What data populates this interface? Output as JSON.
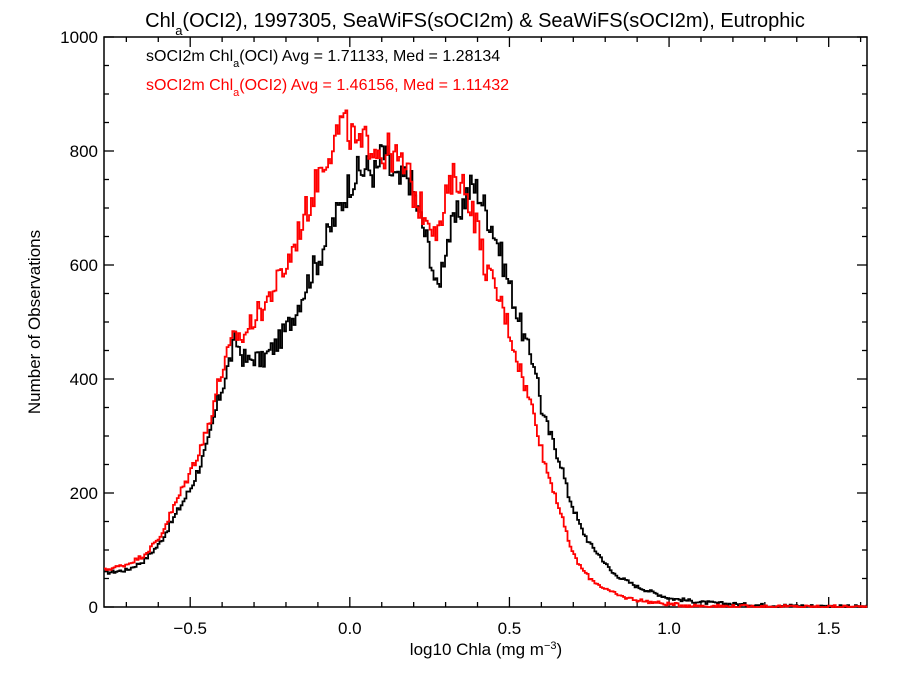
{
  "chart_data": {
    "type": "line",
    "title_parts": [
      "Chl",
      "a",
      "(OCI2), 1997305, SeaWiFS(sOCI2m) & SeaWiFS(sOCI2m), Eutrophic"
    ],
    "xlabel_parts": [
      "log10 Chla (mg m",
      "−3",
      ")"
    ],
    "ylabel": "Number of Observations",
    "xlim": [
      -0.77,
      1.62
    ],
    "ylim": [
      0,
      1000
    ],
    "x_ticks": [
      -0.5,
      0.0,
      0.5,
      1.0,
      1.5
    ],
    "x_tick_labels": [
      "−0.5",
      "0.0",
      "0.5",
      "1.0",
      "1.5"
    ],
    "y_ticks": [
      0,
      200,
      400,
      600,
      800,
      1000
    ],
    "y_tick_labels": [
      "0",
      "200",
      "400",
      "600",
      "800",
      "1000"
    ],
    "grid": false,
    "legend_position": "top-left",
    "series": [
      {
        "name_parts": [
          "sOCI2m Chl",
          "a",
          "(OCI) Avg = 1.71133, Med = 1.28134"
        ],
        "color": "#000000",
        "points": [
          [
            -0.77,
            60
          ],
          [
            -0.7,
            65
          ],
          [
            -0.65,
            80
          ],
          [
            -0.6,
            110
          ],
          [
            -0.55,
            160
          ],
          [
            -0.5,
            210
          ],
          [
            -0.45,
            280
          ],
          [
            -0.42,
            350
          ],
          [
            -0.4,
            390
          ],
          [
            -0.38,
            430
          ],
          [
            -0.36,
            470
          ],
          [
            -0.34,
            440
          ],
          [
            -0.32,
            430
          ],
          [
            -0.3,
            440
          ],
          [
            -0.28,
            430
          ],
          [
            -0.25,
            450
          ],
          [
            -0.22,
            470
          ],
          [
            -0.2,
            490
          ],
          [
            -0.18,
            510
          ],
          [
            -0.15,
            550
          ],
          [
            -0.12,
            590
          ],
          [
            -0.1,
            610
          ],
          [
            -0.08,
            640
          ],
          [
            -0.05,
            680
          ],
          [
            -0.02,
            720
          ],
          [
            0.0,
            750
          ],
          [
            0.02,
            760
          ],
          [
            0.05,
            770
          ],
          [
            0.08,
            760
          ],
          [
            0.1,
            800
          ],
          [
            0.12,
            770
          ],
          [
            0.15,
            740
          ],
          [
            0.18,
            760
          ],
          [
            0.2,
            720
          ],
          [
            0.22,
            680
          ],
          [
            0.25,
            620
          ],
          [
            0.27,
            550
          ],
          [
            0.3,
            640
          ],
          [
            0.33,
            680
          ],
          [
            0.36,
            720
          ],
          [
            0.38,
            740
          ],
          [
            0.4,
            730
          ],
          [
            0.42,
            700
          ],
          [
            0.45,
            660
          ],
          [
            0.48,
            600
          ],
          [
            0.5,
            560
          ],
          [
            0.52,
            520
          ],
          [
            0.55,
            460
          ],
          [
            0.58,
            420
          ],
          [
            0.6,
            340
          ],
          [
            0.62,
            310
          ],
          [
            0.64,
            280
          ],
          [
            0.66,
            250
          ],
          [
            0.68,
            200
          ],
          [
            0.7,
            170
          ],
          [
            0.72,
            140
          ],
          [
            0.75,
            110
          ],
          [
            0.78,
            90
          ],
          [
            0.82,
            60
          ],
          [
            0.85,
            50
          ],
          [
            0.9,
            35
          ],
          [
            0.95,
            25
          ],
          [
            1.0,
            15
          ],
          [
            1.05,
            12
          ],
          [
            1.1,
            8
          ],
          [
            1.2,
            5
          ],
          [
            1.3,
            3
          ],
          [
            1.4,
            2
          ],
          [
            1.5,
            1
          ],
          [
            1.62,
            0
          ]
        ]
      },
      {
        "name_parts": [
          "sOCI2m Chl",
          "a",
          "(OCI2) Avg = 1.46156, Med = 1.11432"
        ],
        "color": "#ff0000",
        "points": [
          [
            -0.77,
            65
          ],
          [
            -0.7,
            75
          ],
          [
            -0.65,
            90
          ],
          [
            -0.6,
            120
          ],
          [
            -0.55,
            180
          ],
          [
            -0.5,
            240
          ],
          [
            -0.45,
            310
          ],
          [
            -0.42,
            380
          ],
          [
            -0.4,
            420
          ],
          [
            -0.38,
            450
          ],
          [
            -0.36,
            480
          ],
          [
            -0.34,
            470
          ],
          [
            -0.32,
            490
          ],
          [
            -0.3,
            510
          ],
          [
            -0.28,
            520
          ],
          [
            -0.25,
            550
          ],
          [
            -0.22,
            580
          ],
          [
            -0.2,
            600
          ],
          [
            -0.18,
            630
          ],
          [
            -0.15,
            680
          ],
          [
            -0.12,
            720
          ],
          [
            -0.1,
            760
          ],
          [
            -0.08,
            790
          ],
          [
            -0.05,
            820
          ],
          [
            -0.03,
            850
          ],
          [
            0.0,
            830
          ],
          [
            0.03,
            800
          ],
          [
            0.05,
            820
          ],
          [
            0.08,
            810
          ],
          [
            0.1,
            790
          ],
          [
            0.12,
            800
          ],
          [
            0.15,
            780
          ],
          [
            0.18,
            760
          ],
          [
            0.2,
            720
          ],
          [
            0.22,
            700
          ],
          [
            0.25,
            680
          ],
          [
            0.28,
            660
          ],
          [
            0.3,
            720
          ],
          [
            0.33,
            760
          ],
          [
            0.35,
            740
          ],
          [
            0.37,
            720
          ],
          [
            0.4,
            660
          ],
          [
            0.42,
            600
          ],
          [
            0.45,
            560
          ],
          [
            0.48,
            520
          ],
          [
            0.5,
            480
          ],
          [
            0.52,
            440
          ],
          [
            0.55,
            380
          ],
          [
            0.58,
            330
          ],
          [
            0.6,
            270
          ],
          [
            0.62,
            230
          ],
          [
            0.64,
            200
          ],
          [
            0.66,
            160
          ],
          [
            0.68,
            120
          ],
          [
            0.7,
            90
          ],
          [
            0.72,
            70
          ],
          [
            0.75,
            50
          ],
          [
            0.78,
            38
          ],
          [
            0.82,
            25
          ],
          [
            0.85,
            18
          ],
          [
            0.9,
            12
          ],
          [
            0.95,
            8
          ],
          [
            1.0,
            5
          ],
          [
            1.05,
            3
          ],
          [
            1.1,
            2
          ],
          [
            1.2,
            1
          ],
          [
            1.62,
            0
          ]
        ]
      }
    ]
  }
}
